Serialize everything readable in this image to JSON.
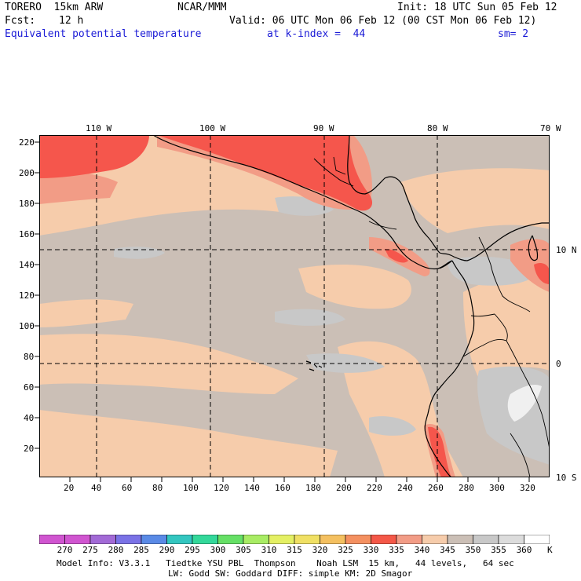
{
  "header": {
    "model": "TORERO  15km ARW",
    "org": "NCAR/MMM",
    "init": "Init: 18 UTC Sun 05 Feb 12",
    "fcst_label": "Fcst:",
    "fcst_value": "12 h",
    "valid": "Valid: 06 UTC Mon 06 Feb 12 (00 CST Mon 06 Feb 12)",
    "field": "Equivalent potential temperature",
    "level": "at k-index =  44",
    "smooth": "sm= 2"
  },
  "map": {
    "lon_labels": [
      "110 W",
      "100 W",
      "90 W",
      "80 W",
      "70 W"
    ],
    "lat_labels": [
      "10 N",
      "0",
      "10 S"
    ],
    "y_ticks": [
      "220",
      "200",
      "180",
      "160",
      "140",
      "120",
      "100",
      "80",
      "60",
      "40",
      "20"
    ],
    "x_ticks": [
      "20",
      "40",
      "60",
      "80",
      "100",
      "120",
      "140",
      "160",
      "180",
      "200",
      "220",
      "240",
      "260",
      "280",
      "300",
      "320"
    ],
    "colors": {
      "c345": "#cbbfb6",
      "c340": "#f6ccab",
      "c335": "#f7a484",
      "c330": "#f5564c",
      "c350": "#c8c8c8",
      "c355": "#d4d4d4",
      "c360": "#f0f0f0",
      "grey_dark": "#b6b6b6"
    }
  },
  "colorbar": {
    "labels": [
      "270",
      "275",
      "280",
      "285",
      "290",
      "295",
      "300",
      "305",
      "310",
      "315",
      "320",
      "325",
      "330",
      "335",
      "340",
      "345",
      "350",
      "355",
      "360"
    ],
    "unit": "K",
    "colors": [
      "#d055d0",
      "#a26ad6",
      "#7a72e6",
      "#5a8ae6",
      "#33c6c0",
      "#33d89a",
      "#66e066",
      "#a8ec64",
      "#e4f064",
      "#f0e064",
      "#f4c060",
      "#f49060",
      "#f45848",
      "#f29c86",
      "#f6ccab",
      "#cbbfb6",
      "#c8c8c8",
      "#dcdcdc",
      "#ffffff"
    ]
  },
  "footer": {
    "line1": "Model Info: V3.3.1   Tiedtke YSU PBL  Thompson    Noah LSM  15 km,   44 levels,   64 sec",
    "line2": "LW: Godd SW: Goddard DIFF: simple KM: 2D Smagor"
  }
}
